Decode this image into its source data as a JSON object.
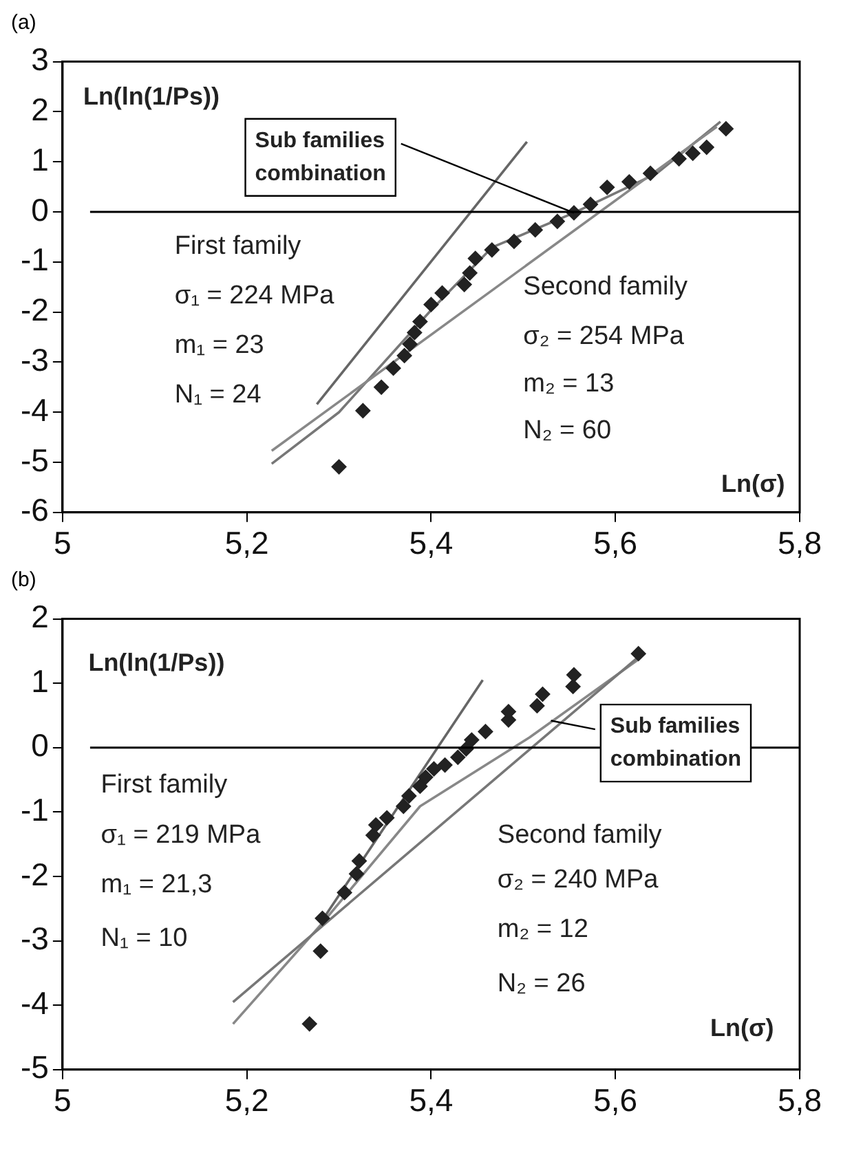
{
  "chart_data": [
    {
      "type": "scatter",
      "title": "(a)",
      "xlabel": "Ln(σ)",
      "ylabel": "Ln(ln(1/Ps))",
      "xlim": [
        5,
        5.8
      ],
      "xticks": [
        5,
        {
          "value": 5.2,
          "label": "5,2"
        },
        {
          "value": 5.4,
          "label": "5,4"
        },
        {
          "value": 5.6,
          "label": "5,6"
        },
        {
          "value": 5.8,
          "label": "5,8"
        }
      ],
      "ylim": [
        -6,
        3
      ],
      "yticks": [
        -6,
        -5,
        -4,
        -3,
        -2,
        -1,
        0,
        1,
        2,
        3
      ],
      "grid": false,
      "legend": false,
      "ref_lines": [
        {
          "axis": "y",
          "value": 0,
          "color": "#000000"
        }
      ],
      "annotations": [
        "First family",
        "σ₁ = 224 MPa",
        "m₁ = 23",
        "N₁ = 24",
        "Second family",
        "σ₂ = 254 MPa",
        "m₂ = 13",
        "N₂ = 60",
        {
          "text": "Sub families combination",
          "x": 5.555,
          "y": -0.02
        }
      ],
      "series": [
        {
          "type": "scatter",
          "marker": "diamond",
          "color": "#222222",
          "x": [
            5.3,
            5.326,
            5.346,
            5.359,
            5.371,
            5.377,
            5.382,
            5.388,
            5.4,
            5.412,
            5.436,
            5.442,
            5.448,
            5.466,
            5.49,
            5.513,
            5.537,
            5.555,
            5.573,
            5.591,
            5.615,
            5.638,
            5.669,
            5.684,
            5.699,
            5.72
          ],
          "values": [
            -5.09,
            -3.97,
            -3.5,
            -3.12,
            -2.87,
            -2.64,
            -2.41,
            -2.19,
            -1.85,
            -1.62,
            -1.45,
            -1.22,
            -0.93,
            -0.76,
            -0.59,
            -0.36,
            -0.19,
            -0.02,
            0.15,
            0.49,
            0.6,
            0.77,
            1.06,
            1.17,
            1.29,
            1.66
          ]
        },
        {
          "type": "line",
          "marker": "none",
          "color": "#666666",
          "x": [
            5.276,
            5.504
          ],
          "values": [
            -3.84,
            1.4
          ]
        },
        {
          "type": "line",
          "marker": "none",
          "color": "#888888",
          "x": [
            5.227,
            5.71
          ],
          "values": [
            -4.77,
            1.7
          ]
        },
        {
          "type": "line",
          "marker": "none",
          "color": "#777777",
          "x": [
            5.227,
            5.3,
            5.4,
            5.466,
            5.555,
            5.645,
            5.714
          ],
          "values": [
            -5.03,
            -4.0,
            -1.96,
            -0.71,
            -0.02,
            0.77,
            1.8
          ]
        }
      ]
    },
    {
      "type": "scatter",
      "title": "(b)",
      "xlabel": "Ln(σ)",
      "ylabel": "Ln(ln(1/Ps))",
      "xlim": [
        5,
        5.8
      ],
      "xticks": [
        5,
        {
          "value": 5.2,
          "label": "5,2"
        },
        {
          "value": 5.4,
          "label": "5,4"
        },
        {
          "value": 5.6,
          "label": "5,6"
        },
        {
          "value": 5.8,
          "label": "5,8"
        }
      ],
      "ylim": [
        -5,
        2
      ],
      "yticks": [
        -5,
        -4,
        -3,
        -2,
        -1,
        0,
        1,
        2
      ],
      "grid": false,
      "legend": false,
      "ref_lines": [
        {
          "axis": "y",
          "value": 0,
          "color": "#000000"
        }
      ],
      "annotations": [
        "First family",
        "σ₁ = 219 MPa",
        "m₁ = 21,3",
        "N₁ = 10",
        "Second family",
        "σ₂ = 240 MPa",
        "m₂ = 12",
        "N₂ = 26",
        {
          "text": "Sub families combination",
          "x": 5.53,
          "y": 0.42
        }
      ],
      "series": [
        {
          "type": "scatter",
          "marker": "diamond",
          "color": "#222222",
          "x": [
            5.268,
            5.28,
            5.282,
            5.306,
            5.319,
            5.322,
            5.337,
            5.34,
            5.352,
            5.37,
            5.376,
            5.388,
            5.394,
            5.403,
            5.415,
            5.429,
            5.438,
            5.444,
            5.459,
            5.484,
            5.484,
            5.515,
            5.521,
            5.554,
            5.555,
            5.625
          ],
          "values": [
            -4.29,
            -3.16,
            -2.65,
            -2.25,
            -1.96,
            -1.76,
            -1.36,
            -1.2,
            -1.09,
            -0.91,
            -0.75,
            -0.6,
            -0.46,
            -0.33,
            -0.27,
            -0.15,
            -0.02,
            0.12,
            0.25,
            0.43,
            0.56,
            0.65,
            0.83,
            0.95,
            1.13,
            1.46
          ]
        },
        {
          "type": "line",
          "marker": "none",
          "color": "#666666",
          "x": [
            5.281,
            5.456
          ],
          "values": [
            -2.7,
            1.05
          ]
        },
        {
          "type": "line",
          "marker": "none",
          "color": "#777777",
          "x": [
            5.185,
            5.625
          ],
          "values": [
            -3.95,
            1.41
          ]
        },
        {
          "type": "line",
          "marker": "none",
          "color": "#888888",
          "x": [
            5.185,
            5.281,
            5.388,
            5.507,
            5.625
          ],
          "values": [
            -4.29,
            -2.74,
            -0.91,
            0.16,
            1.37
          ]
        }
      ]
    }
  ]
}
